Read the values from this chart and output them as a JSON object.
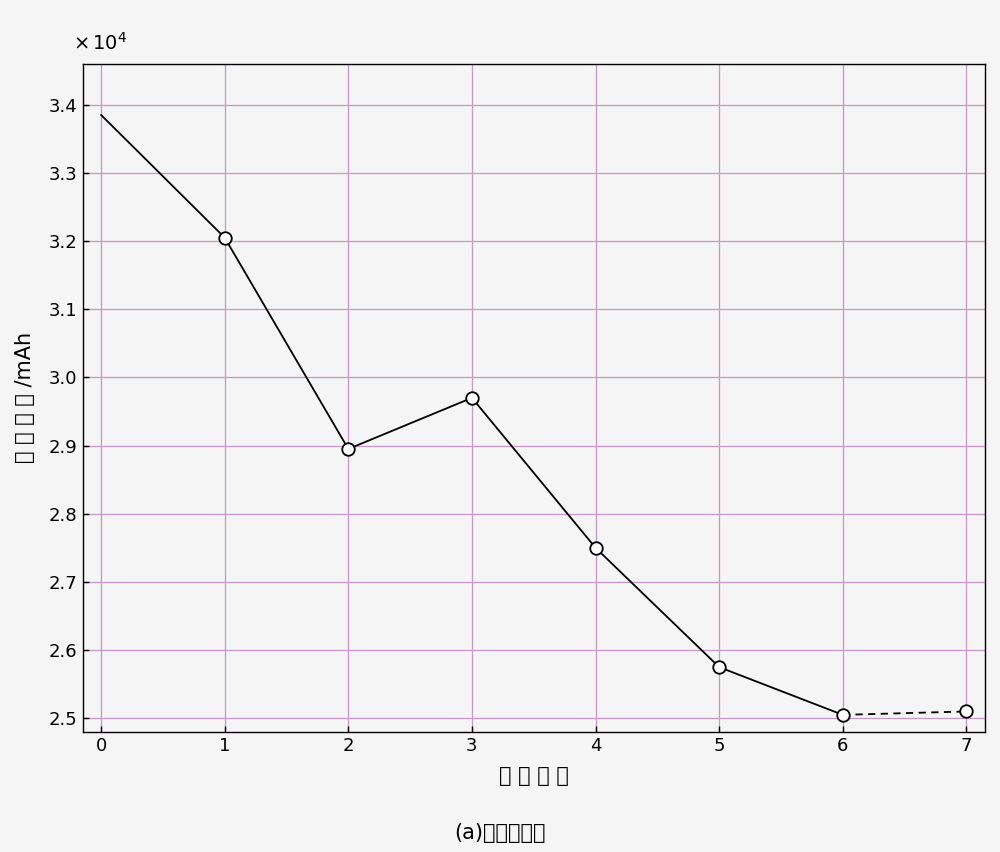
{
  "x": [
    0,
    1,
    2,
    3,
    4,
    5,
    6,
    7
  ],
  "y": [
    33850,
    32050,
    28950,
    29700,
    27500,
    25750,
    25050,
    25100
  ],
  "xlim": [
    -0.15,
    7.15
  ],
  "ylim": [
    24800,
    34600
  ],
  "yticks": [
    25000,
    26000,
    27000,
    28000,
    29000,
    30000,
    31000,
    32000,
    33000,
    34000
  ],
  "xticks": [
    0,
    1,
    2,
    3,
    4,
    5,
    6,
    7
  ],
  "xlabel": "试 验 阶 段",
  "xlabel2": "(a)保序回归前",
  "ylabel": "电 池 容 量 /mAh",
  "line_color": "#000000",
  "marker": "o",
  "marker_facecolor": "#ffffff",
  "marker_edgecolor": "#000000",
  "marker_size": 9,
  "grid_color": "#c896c8",
  "background_color": "#f5f5f5",
  "figsize": [
    10.0,
    8.52
  ]
}
